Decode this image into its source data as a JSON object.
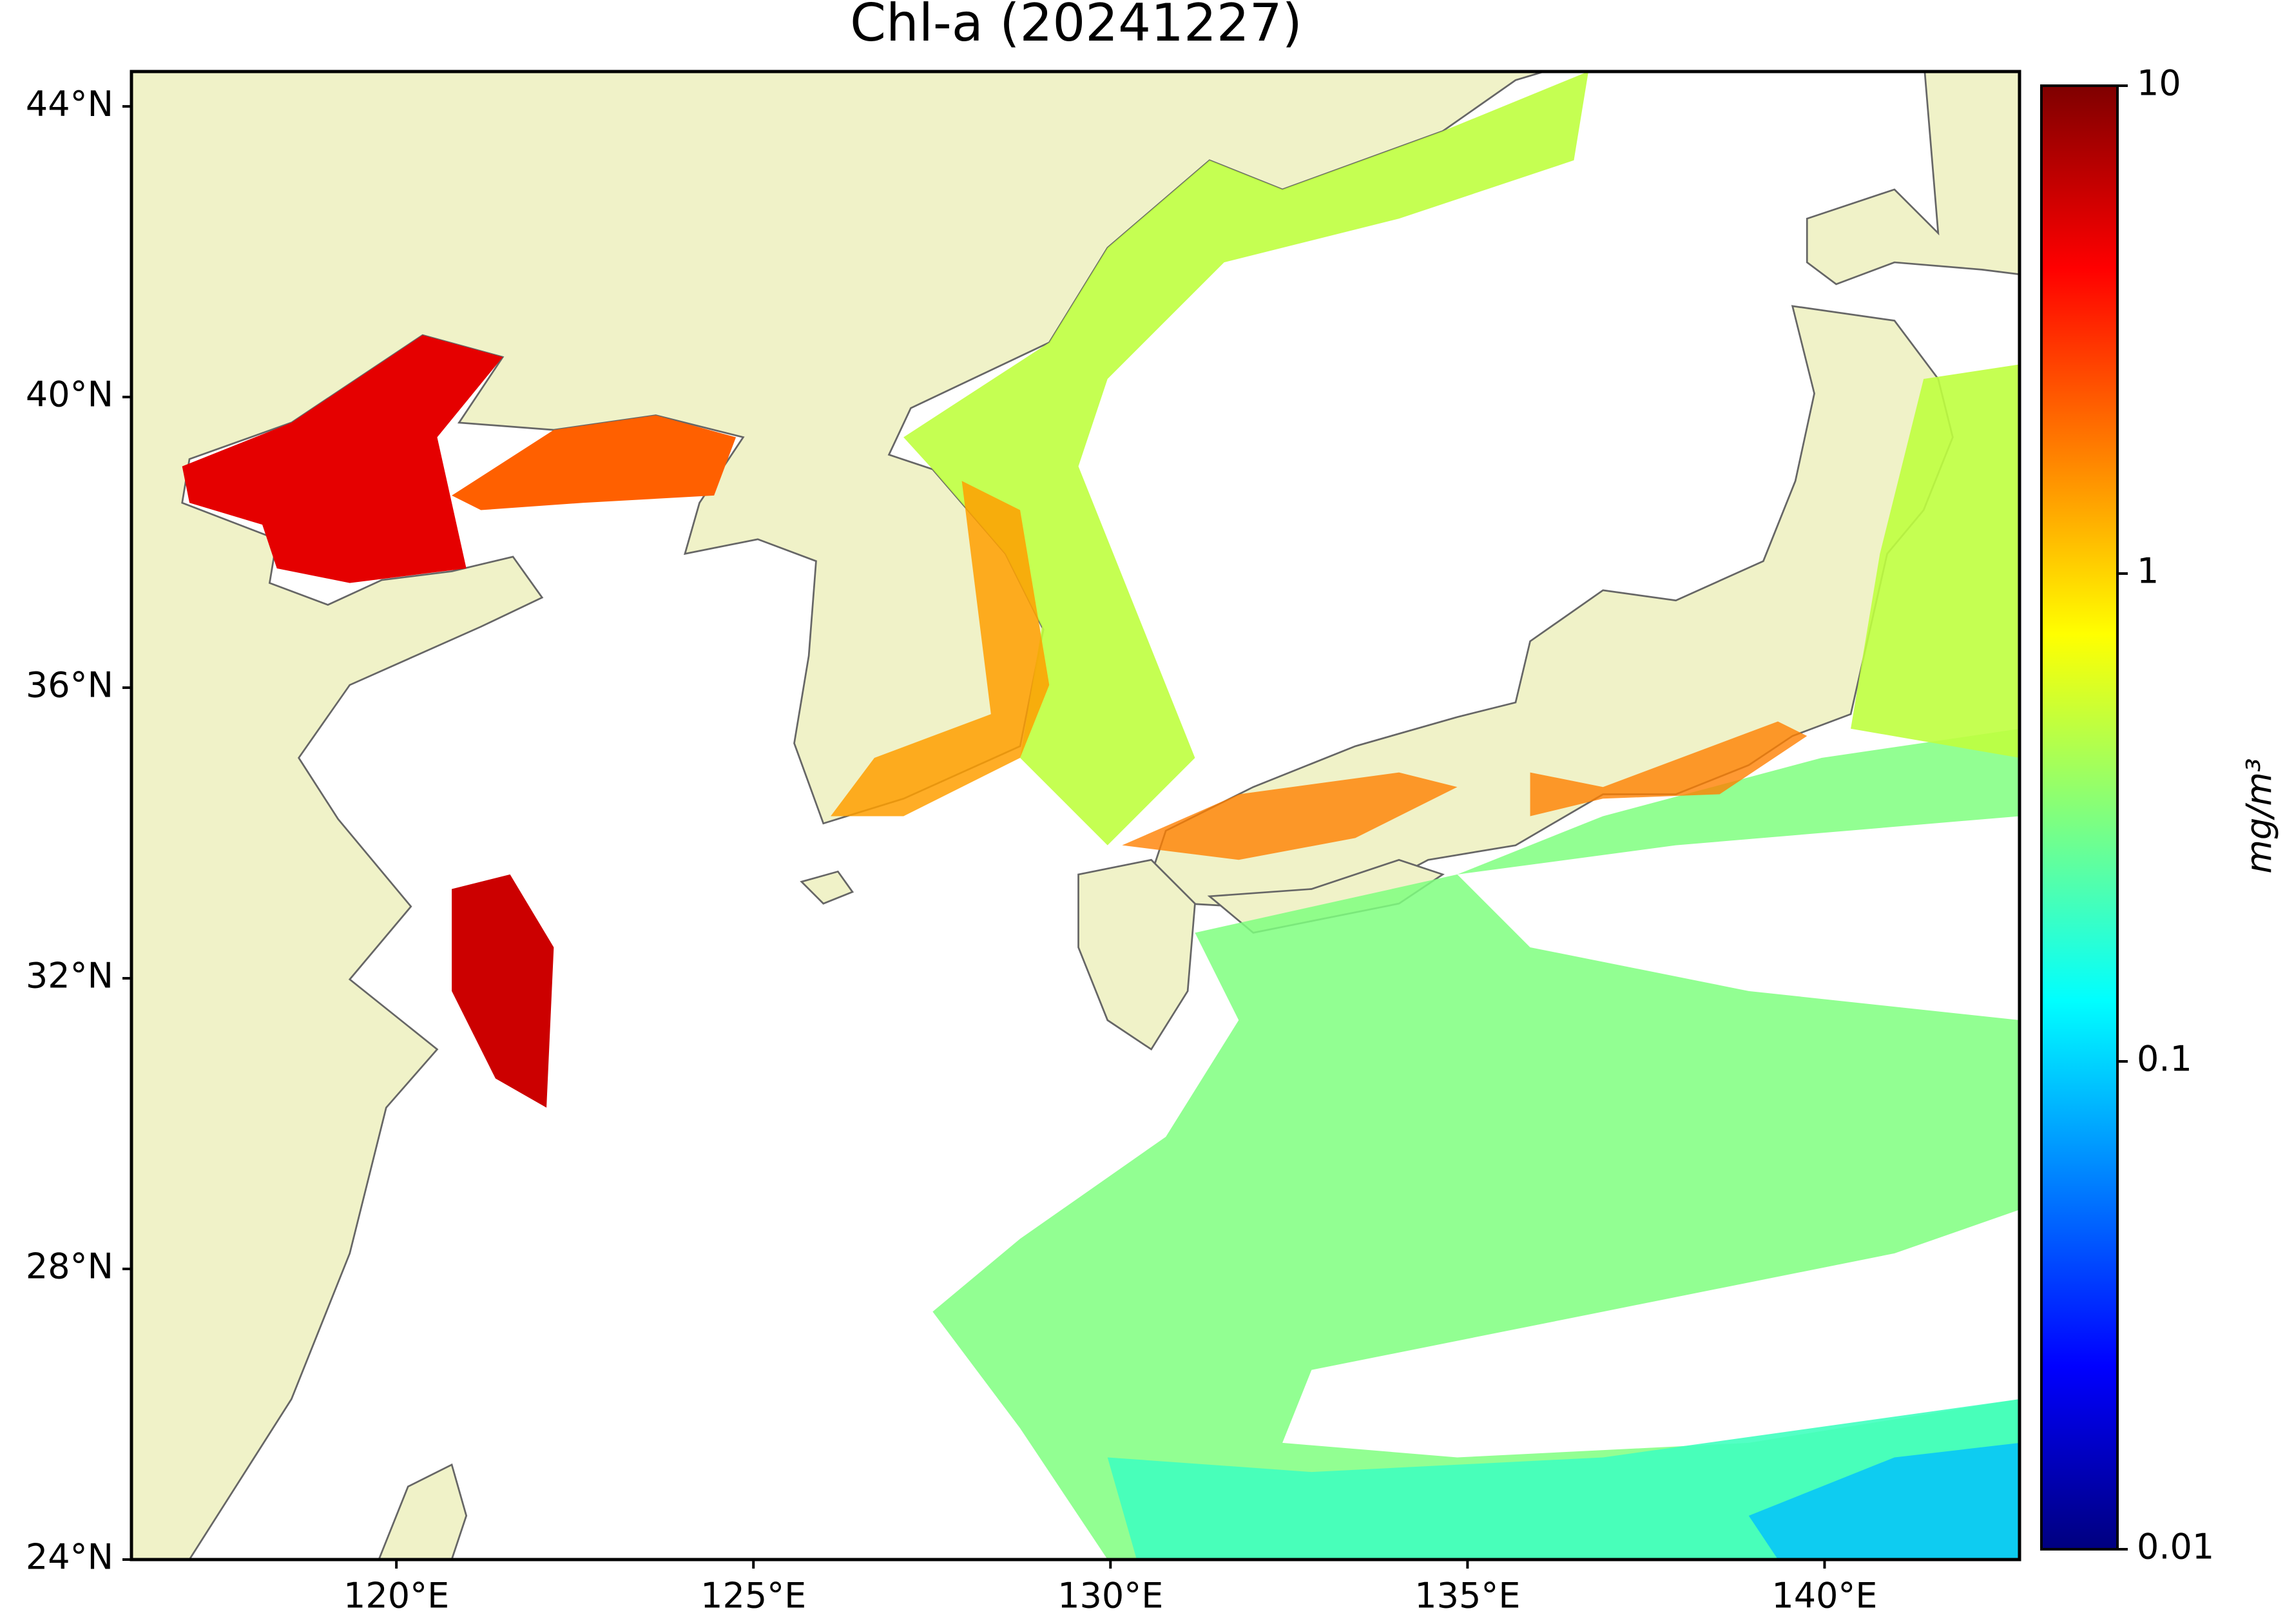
{
  "chart_data": {
    "type": "map",
    "title": "Chl-a (20241227)",
    "xlim": [
      116.29,
      142.73
    ],
    "ylim": [
      24,
      44.48
    ],
    "xticks": [
      {
        "value": 120,
        "label": "120°E"
      },
      {
        "value": 125,
        "label": "125°E"
      },
      {
        "value": 130,
        "label": "130°E"
      },
      {
        "value": 135,
        "label": "135°E"
      },
      {
        "value": 140,
        "label": "140°E"
      }
    ],
    "yticks": [
      {
        "value": 24,
        "label": "24°N"
      },
      {
        "value": 28,
        "label": "28°N"
      },
      {
        "value": 32,
        "label": "32°N"
      },
      {
        "value": 36,
        "label": "36°N"
      },
      {
        "value": 40,
        "label": "40°N"
      },
      {
        "value": 44,
        "label": "44°N"
      }
    ],
    "colorbar": {
      "label": "mg/m³",
      "log_scale": true,
      "lim": [
        0.01,
        10
      ],
      "ticks": [
        0.01,
        0.1,
        1,
        10
      ],
      "colormap": [
        "#00007f",
        "#0000ff",
        "#007fff",
        "#00ffff",
        "#7fff7f",
        "#ffff00",
        "#ff7f00",
        "#ff0000",
        "#7f0000"
      ]
    }
  }
}
